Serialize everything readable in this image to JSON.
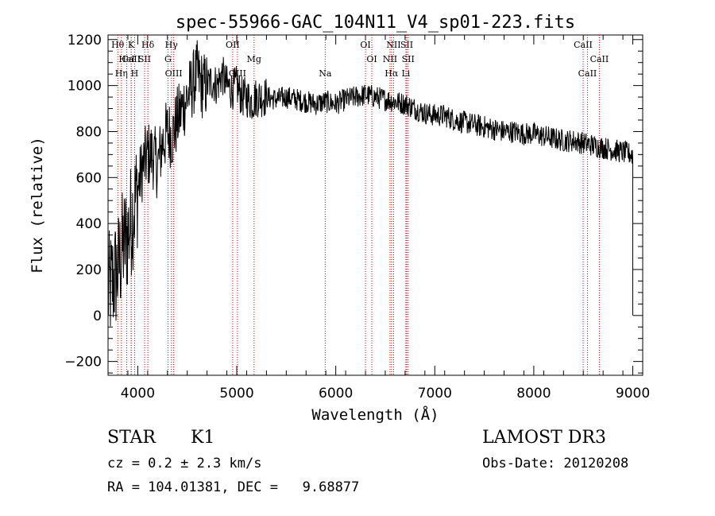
{
  "chart_data": {
    "type": "line",
    "title": "spec-55966-GAC_104N11_V4_sp01-223.fits",
    "xlabel": "Wavelength (Å)",
    "ylabel": "Flux (relative)",
    "xlim": [
      3700,
      9100
    ],
    "ylim": [
      -260,
      1220
    ],
    "xticks": [
      4000,
      5000,
      6000,
      7000,
      8000,
      9000
    ],
    "yticks": [
      -200,
      0,
      200,
      400,
      600,
      800,
      1000,
      1200
    ],
    "series": [
      {
        "name": "flux",
        "x": [
          3700,
          3750,
          3800,
          3850,
          3900,
          3950,
          4000,
          4050,
          4100,
          4150,
          4200,
          4250,
          4300,
          4350,
          4400,
          4450,
          4500,
          4550,
          4600,
          4650,
          4700,
          4750,
          4800,
          4850,
          4900,
          4950,
          5000,
          5050,
          5100,
          5150,
          5200,
          5300,
          5400,
          5500,
          5600,
          5700,
          5800,
          5900,
          6000,
          6100,
          6200,
          6300,
          6400,
          6500,
          6600,
          6700,
          6800,
          6900,
          7000,
          7100,
          7200,
          7300,
          7400,
          7500,
          7600,
          7700,
          7800,
          7900,
          8000,
          8100,
          8200,
          8300,
          8400,
          8500,
          8600,
          8700,
          8800,
          8900,
          9000
        ],
        "y": [
          100,
          150,
          200,
          300,
          350,
          450,
          550,
          650,
          700,
          700,
          650,
          750,
          800,
          780,
          850,
          900,
          950,
          1000,
          1050,
          1000,
          1000,
          1020,
          1000,
          1050,
          1000,
          980,
          1000,
          950,
          950,
          930,
          950,
          950,
          940,
          950,
          940,
          930,
          920,
          930,
          920,
          940,
          950,
          960,
          950,
          940,
          930,
          920,
          900,
          880,
          870,
          870,
          850,
          840,
          830,
          820,
          810,
          800,
          800,
          790,
          790,
          780,
          770,
          760,
          760,
          750,
          740,
          730,
          720,
          710,
          700
        ]
      }
    ],
    "lines": [
      {
        "name": "Hθ",
        "wavelength": 3798
      },
      {
        "name": "CaII",
        "wavelength": 3934
      },
      {
        "name": "Hη",
        "wavelength": 3835
      },
      {
        "name": "K",
        "wavelength": 3934
      },
      {
        "name": "HeI",
        "wavelength": 3889
      },
      {
        "name": "H",
        "wavelength": 3968
      },
      {
        "name": "Hδ",
        "wavelength": 4102
      },
      {
        "name": "SII",
        "wavelength": 4069
      },
      {
        "name": "OIII",
        "wavelength": 4363
      },
      {
        "name": "Hγ",
        "wavelength": 4340
      },
      {
        "name": "G",
        "wavelength": 4305
      },
      {
        "name": "OIII",
        "wavelength": 5007
      },
      {
        "name": "OII",
        "wavelength": 4959
      },
      {
        "name": "Mg",
        "wavelength": 5175
      },
      {
        "name": "Na",
        "wavelength": 5893
      },
      {
        "name": "OI",
        "wavelength": 6300
      },
      {
        "name": "OI",
        "wavelength": 6364
      },
      {
        "name": "Hα",
        "wavelength": 6563
      },
      {
        "name": "SII",
        "wavelength": 6717
      },
      {
        "name": "NII",
        "wavelength": 6548
      },
      {
        "name": "Li",
        "wavelength": 6708
      },
      {
        "name": "NII",
        "wavelength": 6584
      },
      {
        "name": "SII",
        "wavelength": 6731
      },
      {
        "name": "CaII",
        "wavelength": 8542
      },
      {
        "name": "CaII",
        "wavelength": 8498
      },
      {
        "name": "CaII",
        "wavelength": 8662
      }
    ]
  },
  "info": {
    "class": "STAR",
    "subclass": "K1",
    "survey": "LAMOST DR3",
    "cz": "cz = 0.2 ± 2.3 km/s",
    "obs_date": "Obs-Date: 20120208",
    "radec": "RA = 104.01381, DEC =   9.68877"
  }
}
